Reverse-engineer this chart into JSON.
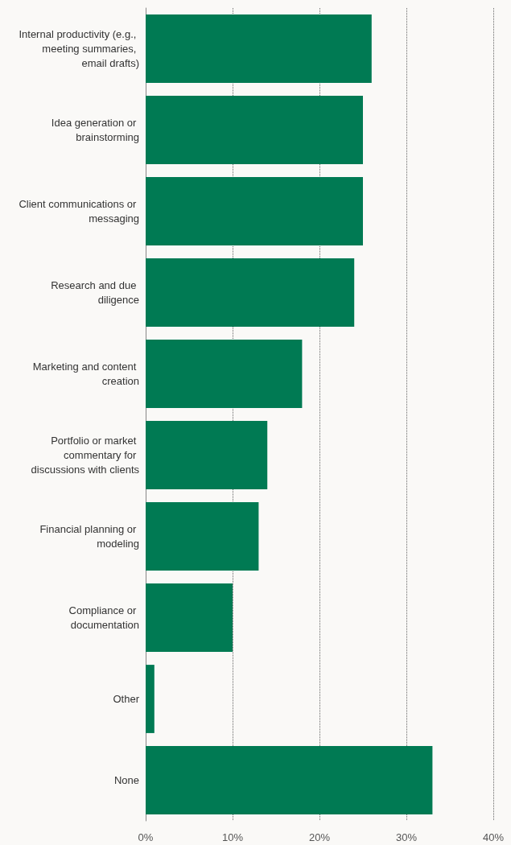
{
  "chart_data": {
    "type": "bar",
    "orientation": "horizontal",
    "categories": [
      "Internal productivity (e.g., meeting summaries, email drafts)",
      "Idea generation or brainstorming",
      "Client communications or messaging",
      "Research and due diligence",
      "Marketing and content creation",
      "Portfolio or market commentary for discussions with clients",
      "Financial planning or modeling",
      "Compliance or documentation",
      "Other",
      "None"
    ],
    "values": [
      26,
      25,
      25,
      24,
      18,
      14,
      13,
      10,
      1,
      33
    ],
    "color": "#007a53",
    "xlim": [
      0,
      40
    ],
    "xticks": [
      {
        "value": 0,
        "label": "0%"
      },
      {
        "value": 10,
        "label": "10%"
      },
      {
        "value": 20,
        "label": "20%"
      },
      {
        "value": 30,
        "label": "30%"
      },
      {
        "value": 40,
        "label": "40%"
      }
    ],
    "grid": "x"
  }
}
